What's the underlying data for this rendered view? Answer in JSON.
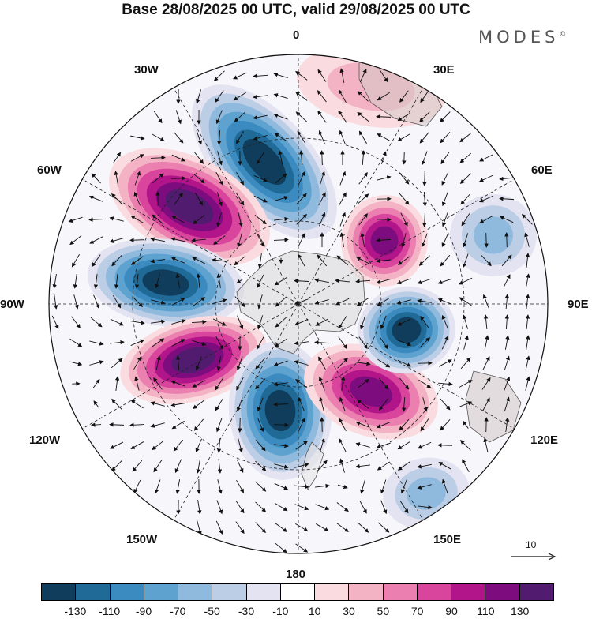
{
  "title": "Base 28/08/2025 00 UTC, valid 29/08/2025 00 UTC",
  "brand": "MODES",
  "brand_mark": "©",
  "longitudes": {
    "top": "0",
    "bottom": "180",
    "left": "90W",
    "right": "90E",
    "nw_upper": "30W",
    "nw_lower": "60W",
    "ne_upper": "30E",
    "ne_lower": "60E",
    "sw_upper": "120W",
    "sw_lower": "150W",
    "se_upper": "120E",
    "se_lower": "150E"
  },
  "reference_vector": {
    "label": "10"
  },
  "colorbar": {
    "colors": [
      "#113d5c",
      "#1f6a97",
      "#3b8ac0",
      "#5ea3d0",
      "#8fb9dd",
      "#bccde6",
      "#e3e3f1",
      "#ffffff",
      "#fadbe0",
      "#f4b3c4",
      "#ea7fb0",
      "#d9449c",
      "#b21489",
      "#7d0d7e",
      "#511b70"
    ],
    "ticks": [
      "-130",
      "-110",
      "-90",
      "-70",
      "-50",
      "-30",
      "-10",
      "10",
      "30",
      "50",
      "70",
      "90",
      "110",
      "130"
    ]
  },
  "anomalies": [
    {
      "name": "pos-south-atlantic-north",
      "value": 30
    },
    {
      "name": "neg-0-meridian",
      "value": -130
    },
    {
      "name": "pos-60w",
      "value": 130
    },
    {
      "name": "neg-90w",
      "value": -130
    },
    {
      "name": "pos-110w",
      "value": 130
    },
    {
      "name": "neg-180",
      "value": -130
    },
    {
      "name": "pos-135e",
      "value": 110
    },
    {
      "name": "neg-90e",
      "value": -130
    },
    {
      "name": "pos-45e",
      "value": 110
    },
    {
      "name": "neg-60e-weak",
      "value": -50
    },
    {
      "name": "neg-150e-weak",
      "value": -50
    }
  ]
}
